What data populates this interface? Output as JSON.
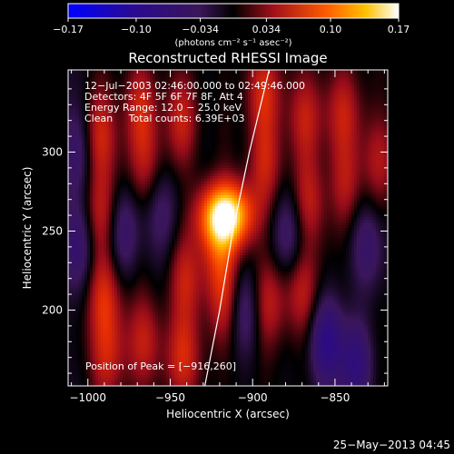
{
  "chart_data": {
    "type": "heatmap",
    "title": "Reconstructed RHESSI Image",
    "xlabel": "Heliocentric X (arcsec)",
    "ylabel": "Heliocentric Y (arcsec)",
    "xlim": [
      -1012,
      -818
    ],
    "ylim": [
      152,
      352
    ],
    "x_ticks": [
      -1000,
      -950,
      -900,
      -850
    ],
    "x_tick_labels": [
      "−1000",
      "−950",
      "−900",
      "−850"
    ],
    "y_ticks": [
      200,
      250,
      300
    ],
    "y_tick_labels": [
      "200",
      "250",
      "300"
    ],
    "colorbar": {
      "range": [
        -0.17,
        0.17
      ],
      "ticks": [
        -0.17,
        -0.1,
        -0.034,
        0.034,
        0.1,
        0.17
      ],
      "tick_labels": [
        "−0.17",
        "−0.10",
        "−0.034",
        "0.034",
        "0.10",
        "0.17"
      ],
      "units_label": "(photons cm⁻² s⁻¹ asec⁻²)",
      "colormap": "fire"
    },
    "annotations": {
      "time": "12−Jul−2003 02:46:00.000 to 02:49:46.000",
      "detectors": "Detectors: 4F 5F 6F 7F 8F, Att 4",
      "energy": "Energy Range: 12.0 − 25.0 keV",
      "clean": "Clean     Total counts: 6.39E+03",
      "peak": "Position of Peak = [−916,260]"
    },
    "peak": {
      "x": -916,
      "y": 260,
      "value": 0.17
    },
    "limb_curve": [
      [
        -929,
        152
      ],
      [
        -920,
        200
      ],
      [
        -912,
        250
      ],
      [
        -902,
        300
      ],
      [
        -890,
        352
      ]
    ],
    "stripe_centers_x": [
      -992,
      -968,
      -943,
      -917,
      -893,
      -868,
      -845,
      -823
    ],
    "blobs": [
      {
        "x": -916,
        "y": 260,
        "amp": 0.17
      },
      {
        "x": -920,
        "y": 238,
        "amp": 0.06
      },
      {
        "x": -917,
        "y": 205,
        "amp": 0.05
      },
      {
        "x": -993,
        "y": 310,
        "amp": 0.06
      },
      {
        "x": -992,
        "y": 262,
        "amp": 0.05
      },
      {
        "x": -990,
        "y": 208,
        "amp": 0.06
      },
      {
        "x": -988,
        "y": 170,
        "amp": 0.05
      },
      {
        "x": -968,
        "y": 328,
        "amp": 0.05
      },
      {
        "x": -965,
        "y": 292,
        "amp": 0.04
      },
      {
        "x": -966,
        "y": 180,
        "amp": 0.05
      },
      {
        "x": -943,
        "y": 320,
        "amp": 0.05
      },
      {
        "x": -940,
        "y": 220,
        "amp": 0.05
      },
      {
        "x": -942,
        "y": 170,
        "amp": 0.06
      },
      {
        "x": -893,
        "y": 338,
        "amp": 0.06
      },
      {
        "x": -892,
        "y": 292,
        "amp": 0.05
      },
      {
        "x": -890,
        "y": 205,
        "amp": 0.05
      },
      {
        "x": -868,
        "y": 322,
        "amp": 0.05
      },
      {
        "x": -866,
        "y": 268,
        "amp": 0.05
      },
      {
        "x": -870,
        "y": 212,
        "amp": 0.05
      },
      {
        "x": -845,
        "y": 325,
        "amp": 0.05
      },
      {
        "x": -843,
        "y": 280,
        "amp": 0.04
      },
      {
        "x": -823,
        "y": 295,
        "amp": 0.04
      },
      {
        "x": -1006,
        "y": 300,
        "amp": -0.05
      },
      {
        "x": -1006,
        "y": 240,
        "amp": -0.05
      },
      {
        "x": -978,
        "y": 250,
        "amp": -0.05
      },
      {
        "x": -955,
        "y": 262,
        "amp": -0.04
      },
      {
        "x": -905,
        "y": 200,
        "amp": -0.05
      },
      {
        "x": -878,
        "y": 248,
        "amp": -0.05
      },
      {
        "x": -855,
        "y": 180,
        "amp": -0.08
      },
      {
        "x": -838,
        "y": 165,
        "amp": -0.07
      },
      {
        "x": -830,
        "y": 240,
        "amp": -0.05
      }
    ]
  },
  "footer": {
    "date": "25−May−2013 04:45"
  }
}
